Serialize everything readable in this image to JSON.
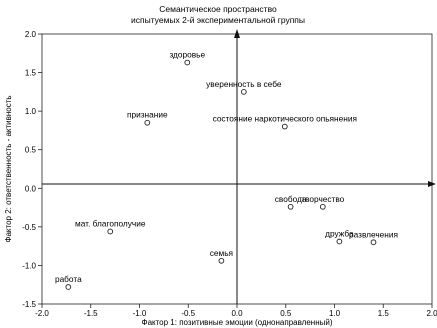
{
  "chart_data": {
    "type": "scatter",
    "title": "Семантическое пространство",
    "subtitle": "испытуемых 2-й экспериментальной группы",
    "xlabel": "Фактор 1: позитивные эмоции (однонаправленный)",
    "ylabel": "Фактор 2: ответственность - активность",
    "xlim": [
      -2.0,
      2.0
    ],
    "ylim": [
      -1.5,
      2.0
    ],
    "x_ticks": [
      "-2.0",
      "-1.5",
      "-1.0",
      "-0.5",
      "0.0",
      "0.5",
      "1.0",
      "1.5",
      "2.0"
    ],
    "y_ticks": [
      "2.0",
      "1.5",
      "1.0",
      "0.5",
      "0.0",
      "-0.5",
      "-1.0",
      "-1.5"
    ],
    "grid": false,
    "points": [
      {
        "label": "здоровье",
        "x": -0.51,
        "y": 1.63
      },
      {
        "label": "уверенность в себе",
        "x": 0.07,
        "y": 1.25
      },
      {
        "label": "признание",
        "x": -0.92,
        "y": 0.85
      },
      {
        "label": "состояние наркотического опьянения",
        "x": 0.49,
        "y": 0.8
      },
      {
        "label": "свобода",
        "x": 0.55,
        "y": -0.24
      },
      {
        "label": "творчество",
        "x": 0.88,
        "y": -0.24
      },
      {
        "label": "дружба",
        "x": 1.05,
        "y": -0.69
      },
      {
        "label": "развлечения",
        "x": 1.4,
        "y": -0.7
      },
      {
        "label": "мат. благополучие",
        "x": -1.3,
        "y": -0.56
      },
      {
        "label": "семья",
        "x": -0.16,
        "y": -0.94
      },
      {
        "label": "работа",
        "x": -1.73,
        "y": -1.28
      }
    ]
  }
}
